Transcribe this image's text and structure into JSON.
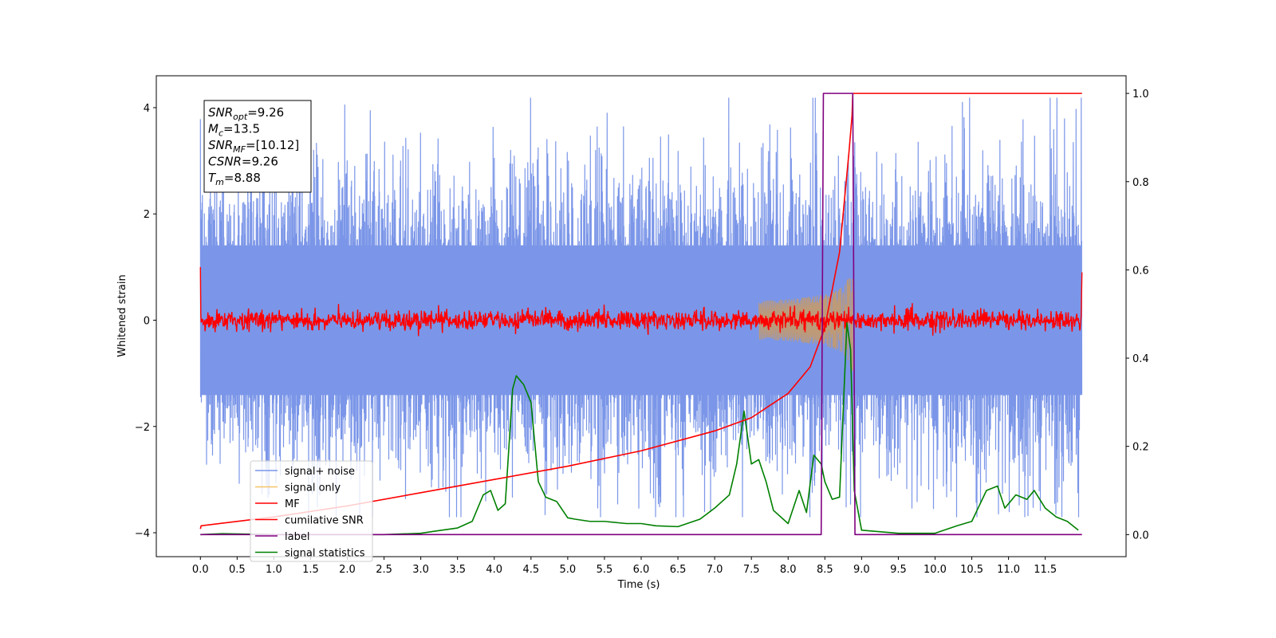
{
  "chart_data": {
    "type": "line",
    "xlabel": "Time (s)",
    "ylabel": "Whitened strain",
    "xlim": [
      -0.6,
      12.6
    ],
    "ylim_left": [
      -4.45,
      4.6
    ],
    "ylim_right": [
      -0.05,
      1.04
    ],
    "x_ticks": [
      0.0,
      0.5,
      1.0,
      1.5,
      2.0,
      2.5,
      3.0,
      3.5,
      4.0,
      4.5,
      5.0,
      5.5,
      6.0,
      6.5,
      7.0,
      7.5,
      8.0,
      8.5,
      9.0,
      9.5,
      10.0,
      10.5,
      11.0,
      11.5
    ],
    "x_tick_labels": [
      "0.0",
      "0.5",
      "1.0",
      "1.5",
      "2.0",
      "2.5",
      "3.0",
      "3.5",
      "4.0",
      "4.5",
      "5.0",
      "5.5",
      "6.0",
      "6.5",
      "7.0",
      "7.5",
      "8.0",
      "8.5",
      "9.0",
      "9.5",
      "10.0",
      "10.5",
      "11.0",
      "11.5"
    ],
    "y_ticks_left": [
      -4,
      -2,
      0,
      2,
      4
    ],
    "y_tick_labels_left": [
      "−4",
      "−2",
      "0",
      "2",
      "4"
    ],
    "y_ticks_right": [
      0.0,
      0.2,
      0.4,
      0.6,
      0.8,
      1.0
    ],
    "y_tick_labels_right": [
      "0.0",
      "0.2",
      "0.4",
      "0.6",
      "0.8",
      "1.0"
    ],
    "grid": false,
    "legend_position": "bottom-left",
    "annotation": [
      {
        "sym": "SNR",
        "sub": "opt",
        "value": "=9.26"
      },
      {
        "sym": "M",
        "sub": "c",
        "value": "=13.5"
      },
      {
        "sym": "SNR",
        "sub": "MF",
        "value": "=[10.12]"
      },
      {
        "sym": "CSNR",
        "sub": "",
        "value": "=9.26"
      },
      {
        "sym": "T",
        "sub": "m",
        "value": "=8.88"
      }
    ],
    "series": [
      {
        "name": "signal+ noise",
        "color": "#7b96e8",
        "axis": "left",
        "description_values": {
          "x_range": [
            0.0,
            12.0
          ],
          "noise_std": 0.85,
          "max_peak": 4.18,
          "min_peak": -3.7
        }
      },
      {
        "name": "signal only",
        "color": "#f5c36b",
        "axis": "left",
        "description_values": {
          "x_range": [
            0.0,
            8.88
          ],
          "merger_time": 8.88,
          "peak_amplitude": 1.1
        }
      },
      {
        "name": "MF",
        "color": "#ff0000",
        "axis": "left",
        "description_values": {
          "x_range": [
            0.0,
            12.0
          ],
          "noise_std": 0.09,
          "start_value": 1.0,
          "end_value": 0.9
        }
      },
      {
        "name": "cumilative SNR",
        "color": "#ff0000",
        "axis": "right",
        "x": [
          0.0,
          0.01,
          1.0,
          2.0,
          3.0,
          4.0,
          5.0,
          6.0,
          7.0,
          7.5,
          8.0,
          8.3,
          8.5,
          8.7,
          8.83,
          8.87,
          8.88,
          12.0
        ],
        "y": [
          0.013,
          0.02,
          0.04,
          0.065,
          0.095,
          0.125,
          0.155,
          0.19,
          0.235,
          0.265,
          0.32,
          0.38,
          0.47,
          0.64,
          0.87,
          0.95,
          1.0,
          1.0
        ]
      },
      {
        "name": "label",
        "color": "#800080",
        "axis": "right",
        "x": [
          0.0,
          8.45,
          8.48,
          8.88,
          8.91,
          12.0
        ],
        "y": [
          0.0,
          0.0,
          1.0,
          1.0,
          0.0,
          0.0
        ]
      },
      {
        "name": "signal statistics",
        "color": "#008000",
        "axis": "right",
        "x": [
          0.0,
          0.3,
          1.0,
          2.0,
          2.5,
          3.0,
          3.2,
          3.5,
          3.7,
          3.85,
          3.95,
          4.05,
          4.15,
          4.25,
          4.3,
          4.4,
          4.5,
          4.6,
          4.7,
          4.85,
          5.0,
          5.1,
          5.3,
          5.5,
          5.8,
          6.0,
          6.2,
          6.5,
          6.8,
          7.0,
          7.2,
          7.3,
          7.4,
          7.5,
          7.6,
          7.7,
          7.8,
          8.0,
          8.15,
          8.25,
          8.35,
          8.45,
          8.5,
          8.6,
          8.7,
          8.8,
          8.85,
          8.9,
          9.0,
          9.5,
          10.0,
          10.3,
          10.5,
          10.7,
          10.85,
          10.95,
          11.1,
          11.25,
          11.35,
          11.5,
          11.65,
          11.8,
          11.95
        ],
        "y": [
          0.0,
          0.002,
          0.0,
          0.0,
          0.0,
          0.003,
          0.008,
          0.015,
          0.03,
          0.09,
          0.1,
          0.055,
          0.07,
          0.33,
          0.36,
          0.34,
          0.3,
          0.12,
          0.085,
          0.075,
          0.038,
          0.035,
          0.03,
          0.03,
          0.025,
          0.025,
          0.02,
          0.018,
          0.035,
          0.06,
          0.09,
          0.16,
          0.28,
          0.16,
          0.17,
          0.12,
          0.055,
          0.025,
          0.1,
          0.05,
          0.18,
          0.16,
          0.12,
          0.08,
          0.085,
          0.48,
          0.42,
          0.1,
          0.01,
          0.003,
          0.003,
          0.02,
          0.03,
          0.1,
          0.11,
          0.06,
          0.09,
          0.08,
          0.1,
          0.06,
          0.04,
          0.03,
          0.01
        ]
      }
    ]
  }
}
